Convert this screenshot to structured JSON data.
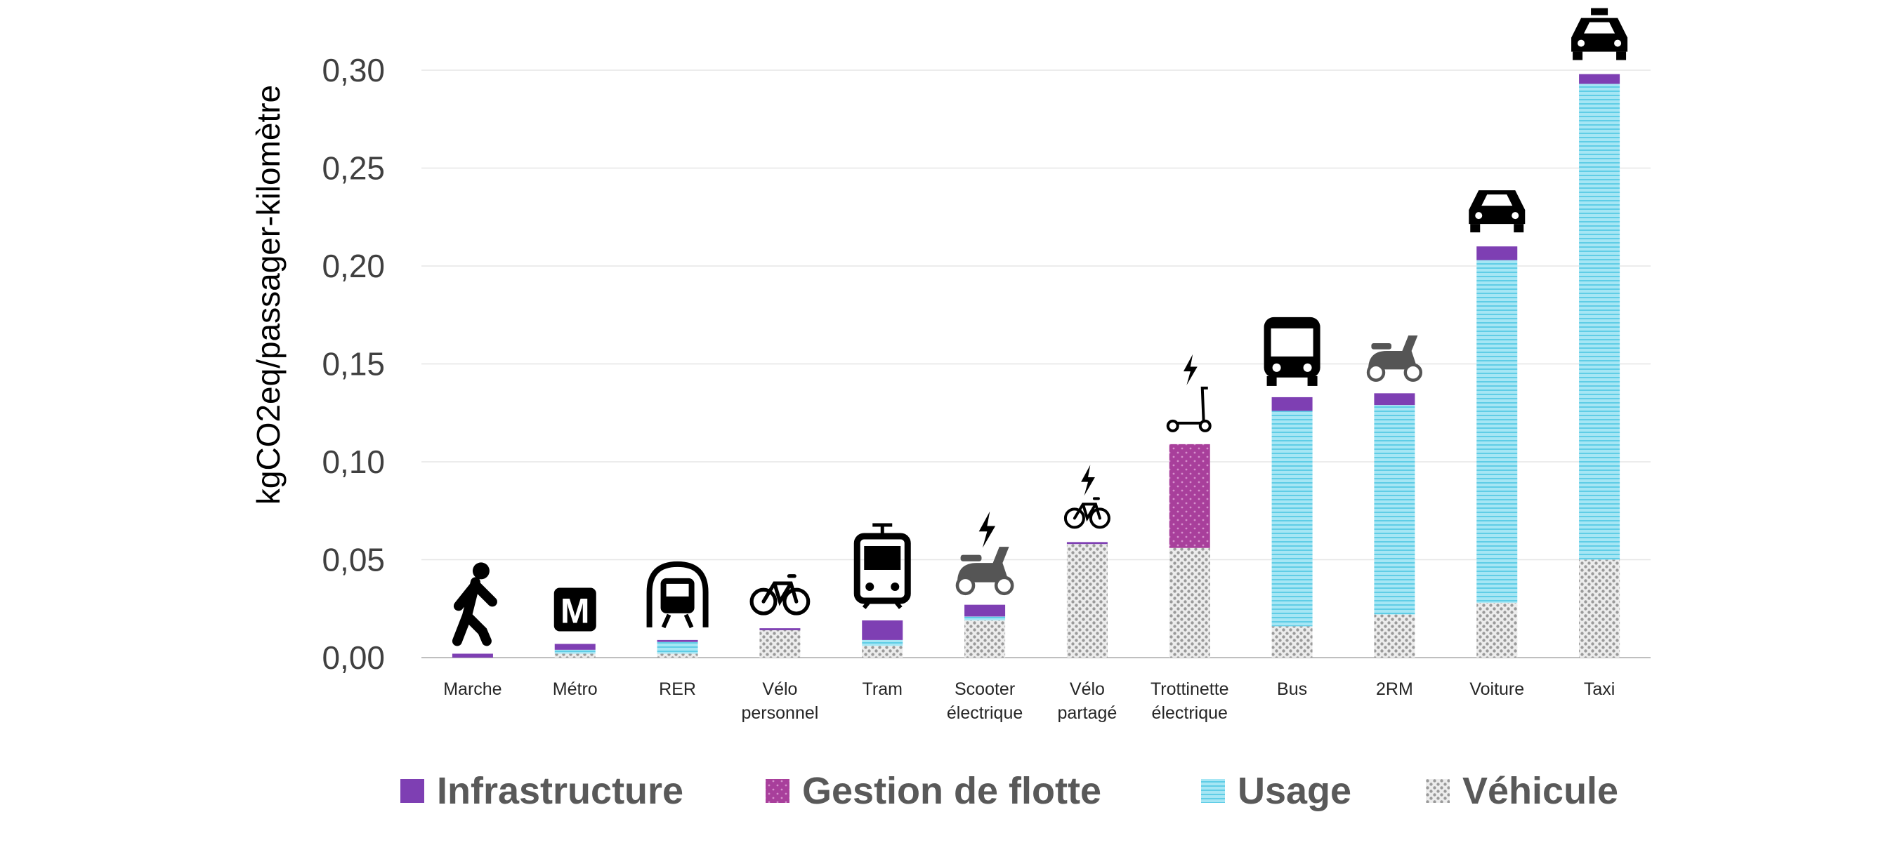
{
  "chart_data": {
    "type": "bar",
    "stacked": true,
    "title": "",
    "xlabel": "",
    "ylabel": "kgCO2eq/passager-kilomètre",
    "ylim": [
      0,
      0.3
    ],
    "yticks": [
      "0,00",
      "0,05",
      "0,10",
      "0,15",
      "0,20",
      "0,25",
      "0,30"
    ],
    "ytick_values": [
      0,
      0.05,
      0.1,
      0.15,
      0.2,
      0.25,
      0.3
    ],
    "grid": true,
    "legend_position": "bottom",
    "categories": [
      [
        "Marche"
      ],
      [
        "Métro"
      ],
      [
        "RER"
      ],
      [
        "Vélo",
        "personnel"
      ],
      [
        "Tram"
      ],
      [
        "Scooter",
        "électrique"
      ],
      [
        "Vélo",
        "partagé"
      ],
      [
        "Trottinette",
        "électrique"
      ],
      [
        "Bus"
      ],
      [
        "2RM"
      ],
      [
        "Voiture"
      ],
      [
        "Taxi"
      ]
    ],
    "category_icons": [
      "walking-person-icon",
      "metro-m-icon",
      "rer-train-icon",
      "bicycle-icon",
      "tram-icon",
      "electric-scooter-icon",
      "electric-bike-icon",
      "electric-kick-scooter-icon",
      "bus-icon",
      "motor-scooter-icon",
      "car-icon",
      "taxi-icon"
    ],
    "series": [
      {
        "name": "Véhicule",
        "color": "#bfbfbf",
        "pattern": "dots",
        "values": [
          0,
          0.002,
          0.002,
          0.014,
          0.006,
          0.019,
          0.058,
          0.056,
          0.016,
          0.022,
          0.028,
          0.05
        ]
      },
      {
        "name": "Usage",
        "color": "#8fdcee",
        "pattern": "lines",
        "values": [
          0,
          0.002,
          0.006,
          0,
          0.003,
          0.002,
          0,
          0,
          0.11,
          0.107,
          0.175,
          0.243
        ]
      },
      {
        "name": "Gestion de flotte",
        "color": "#b04aa3",
        "pattern": "dots",
        "values": [
          0,
          0,
          0,
          0,
          0,
          0,
          0,
          0.053,
          0,
          0,
          0,
          0
        ]
      },
      {
        "name": "Infrastructure",
        "color": "#7e3fb3",
        "pattern": "solid",
        "values": [
          0.002,
          0.003,
          0.001,
          0.001,
          0.01,
          0.006,
          0.001,
          0,
          0.007,
          0.006,
          0.007,
          0.005
        ]
      }
    ],
    "legend_order": [
      "Infrastructure",
      "Gestion de flotte",
      "Usage",
      "Véhicule"
    ]
  }
}
